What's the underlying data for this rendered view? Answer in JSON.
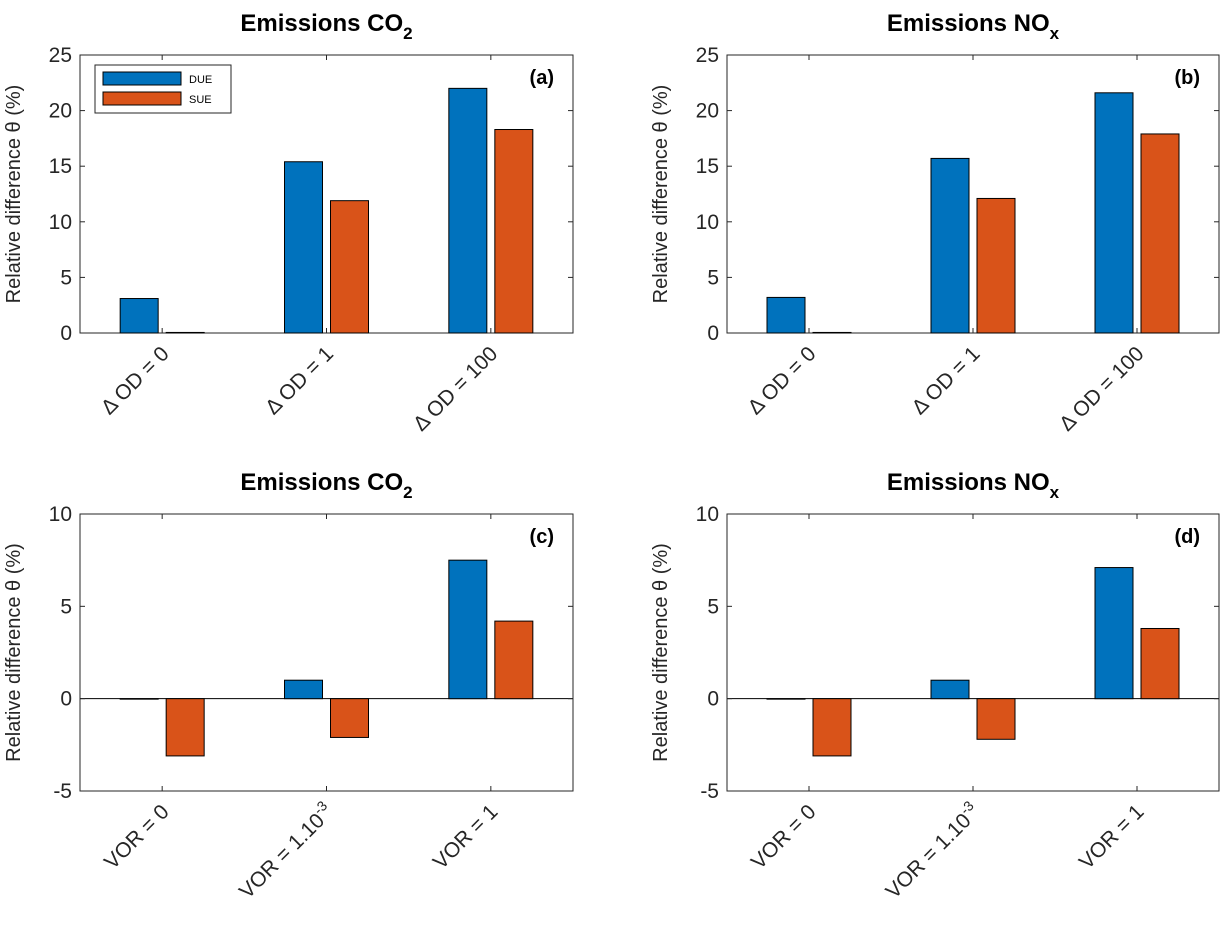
{
  "colors": {
    "DUE": "#0072BD",
    "SUE": "#D95319",
    "axis": "#262626"
  },
  "legend": {
    "placement": "top-left",
    "entries": [
      "DUE",
      "SUE"
    ]
  },
  "chart_data": [
    {
      "type": "bar",
      "title": "Emissions CO",
      "title_subscript": "2",
      "panel_label": "(a)",
      "ylabel": "Relative difference θ (%)",
      "ylim": [
        0,
        25
      ],
      "yticks": [
        "0",
        "5",
        "10",
        "15",
        "20",
        "25"
      ],
      "categories": [
        {
          "base": "Δ OD  = 0",
          "sup": ""
        },
        {
          "base": "Δ OD  = 1",
          "sup": ""
        },
        {
          "base": "Δ OD  = 100",
          "sup": ""
        }
      ],
      "series": [
        {
          "name": "DUE",
          "values": [
            3.1,
            15.4,
            22.0
          ]
        },
        {
          "name": "SUE",
          "values": [
            0.05,
            11.9,
            18.3
          ]
        }
      ],
      "legend": true,
      "grid": false
    },
    {
      "type": "bar",
      "title": "Emissions NO",
      "title_subscript": "x",
      "panel_label": "(b)",
      "ylabel": "Relative difference θ (%)",
      "ylim": [
        0,
        25
      ],
      "yticks": [
        "0",
        "5",
        "10",
        "15",
        "20",
        "25"
      ],
      "categories": [
        {
          "base": "Δ OD  = 0",
          "sup": ""
        },
        {
          "base": "Δ OD  = 1",
          "sup": ""
        },
        {
          "base": "Δ OD  = 100",
          "sup": ""
        }
      ],
      "series": [
        {
          "name": "DUE",
          "values": [
            3.2,
            15.7,
            21.6
          ]
        },
        {
          "name": "SUE",
          "values": [
            0.05,
            12.1,
            17.9
          ]
        }
      ],
      "legend": false,
      "grid": false
    },
    {
      "type": "bar",
      "title": "Emissions CO",
      "title_subscript": "2",
      "panel_label": "(c)",
      "ylabel": "Relative difference θ (%)",
      "ylim": [
        -5,
        10
      ],
      "yticks": [
        "-5",
        "0",
        "5",
        "10"
      ],
      "categories": [
        {
          "base": "VOR = 0",
          "sup": ""
        },
        {
          "base": "VOR = 1.10",
          "sup": "-3"
        },
        {
          "base": "VOR = 1",
          "sup": ""
        }
      ],
      "series": [
        {
          "name": "DUE",
          "values": [
            0.0,
            1.0,
            7.5
          ]
        },
        {
          "name": "SUE",
          "values": [
            -3.1,
            -2.1,
            4.2
          ]
        }
      ],
      "legend": false,
      "grid": false
    },
    {
      "type": "bar",
      "title": "Emissions NO",
      "title_subscript": "x",
      "panel_label": "(d)",
      "ylabel": "Relative difference θ (%)",
      "ylim": [
        -5,
        10
      ],
      "yticks": [
        "-5",
        "0",
        "5",
        "10"
      ],
      "categories": [
        {
          "base": "VOR = 0",
          "sup": ""
        },
        {
          "base": "VOR = 1.10",
          "sup": "-3"
        },
        {
          "base": "VOR = 1",
          "sup": ""
        }
      ],
      "series": [
        {
          "name": "DUE",
          "values": [
            0.0,
            1.0,
            7.1
          ]
        },
        {
          "name": "SUE",
          "values": [
            -3.1,
            -2.2,
            3.8
          ]
        }
      ],
      "legend": false,
      "grid": false
    }
  ]
}
